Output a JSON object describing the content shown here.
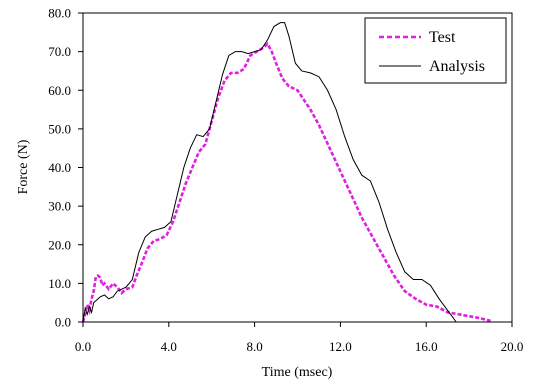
{
  "chart_data": {
    "type": "line",
    "xlabel": "Time (msec)",
    "ylabel": "Force (N)",
    "xlim": [
      0,
      20
    ],
    "ylim": [
      0,
      80
    ],
    "x_ticks": [
      0,
      4,
      8,
      12,
      16,
      20
    ],
    "y_ticks": [
      0,
      10,
      20,
      30,
      40,
      50,
      60,
      70,
      80
    ],
    "x_tick_labels": [
      "0.0",
      "4.0",
      "8.0",
      "12.0",
      "16.0",
      "20.0"
    ],
    "y_tick_labels": [
      "0.0",
      "10.0",
      "20.0",
      "30.0",
      "40.0",
      "50.0",
      "60.0",
      "70.0",
      "80.0"
    ],
    "grid": false,
    "legend": "top-right",
    "series": [
      {
        "name": "Test",
        "style": "dashed",
        "color": "#e020e0",
        "points": [
          [
            0.0,
            0.0
          ],
          [
            0.1,
            2.0
          ],
          [
            0.2,
            4.5
          ],
          [
            0.3,
            3.0
          ],
          [
            0.4,
            6.0
          ],
          [
            0.5,
            8.0
          ],
          [
            0.6,
            11.8
          ],
          [
            0.7,
            12.0
          ],
          [
            0.8,
            11.5
          ],
          [
            0.9,
            9.5
          ],
          [
            1.0,
            10.0
          ],
          [
            1.2,
            8.5
          ],
          [
            1.4,
            10.0
          ],
          [
            1.6,
            9.0
          ],
          [
            1.8,
            7.5
          ],
          [
            2.0,
            8.5
          ],
          [
            2.3,
            9.0
          ],
          [
            2.5,
            12.0
          ],
          [
            2.8,
            16.0
          ],
          [
            3.0,
            19.0
          ],
          [
            3.3,
            21.0
          ],
          [
            3.6,
            21.5
          ],
          [
            3.9,
            22.5
          ],
          [
            4.2,
            26.0
          ],
          [
            4.5,
            31.0
          ],
          [
            4.8,
            36.0
          ],
          [
            5.1,
            40.0
          ],
          [
            5.4,
            44.0
          ],
          [
            5.7,
            46.0
          ],
          [
            6.0,
            52.0
          ],
          [
            6.3,
            58.0
          ],
          [
            6.6,
            62.5
          ],
          [
            6.9,
            64.5
          ],
          [
            7.2,
            64.5
          ],
          [
            7.5,
            65.5
          ],
          [
            7.8,
            69.0
          ],
          [
            8.1,
            70.0
          ],
          [
            8.4,
            71.0
          ],
          [
            8.6,
            72.0
          ],
          [
            8.8,
            70.0
          ],
          [
            9.0,
            67.0
          ],
          [
            9.3,
            63.0
          ],
          [
            9.6,
            61.0
          ],
          [
            10.0,
            60.0
          ],
          [
            10.3,
            57.5
          ],
          [
            10.6,
            55.0
          ],
          [
            11.0,
            51.0
          ],
          [
            11.5,
            45.0
          ],
          [
            12.0,
            39.0
          ],
          [
            12.5,
            33.0
          ],
          [
            13.0,
            27.0
          ],
          [
            13.5,
            22.0
          ],
          [
            14.0,
            17.0
          ],
          [
            14.5,
            12.0
          ],
          [
            15.0,
            8.0
          ],
          [
            15.5,
            6.0
          ],
          [
            16.0,
            4.5
          ],
          [
            16.5,
            4.0
          ],
          [
            17.0,
            2.5
          ],
          [
            17.5,
            2.0
          ],
          [
            18.0,
            1.5
          ],
          [
            18.5,
            1.0
          ],
          [
            19.0,
            0.3
          ]
        ]
      },
      {
        "name": "Analysis",
        "style": "solid",
        "color": "#000000",
        "points": [
          [
            0.0,
            0.0
          ],
          [
            0.1,
            3.5
          ],
          [
            0.2,
            2.0
          ],
          [
            0.3,
            4.0
          ],
          [
            0.4,
            2.5
          ],
          [
            0.5,
            5.0
          ],
          [
            0.6,
            5.5
          ],
          [
            0.8,
            6.5
          ],
          [
            1.0,
            7.0
          ],
          [
            1.2,
            6.0
          ],
          [
            1.4,
            6.5
          ],
          [
            1.6,
            8.0
          ],
          [
            1.8,
            8.5
          ],
          [
            2.0,
            9.0
          ],
          [
            2.3,
            11.0
          ],
          [
            2.6,
            18.0
          ],
          [
            2.9,
            22.0
          ],
          [
            3.2,
            23.5
          ],
          [
            3.5,
            24.0
          ],
          [
            3.8,
            24.5
          ],
          [
            4.1,
            26.0
          ],
          [
            4.4,
            33.0
          ],
          [
            4.7,
            40.0
          ],
          [
            5.0,
            45.0
          ],
          [
            5.3,
            48.5
          ],
          [
            5.6,
            48.0
          ],
          [
            5.9,
            50.0
          ],
          [
            6.2,
            57.0
          ],
          [
            6.5,
            64.0
          ],
          [
            6.8,
            69.0
          ],
          [
            7.1,
            70.0
          ],
          [
            7.4,
            70.0
          ],
          [
            7.7,
            69.5
          ],
          [
            8.0,
            70.0
          ],
          [
            8.3,
            70.5
          ],
          [
            8.6,
            73.0
          ],
          [
            8.9,
            76.5
          ],
          [
            9.2,
            77.5
          ],
          [
            9.4,
            77.5
          ],
          [
            9.6,
            74.0
          ],
          [
            9.9,
            67.0
          ],
          [
            10.2,
            65.0
          ],
          [
            10.6,
            64.5
          ],
          [
            11.0,
            63.5
          ],
          [
            11.4,
            60.0
          ],
          [
            11.8,
            55.0
          ],
          [
            12.2,
            48.0
          ],
          [
            12.6,
            42.0
          ],
          [
            13.0,
            38.0
          ],
          [
            13.4,
            36.5
          ],
          [
            13.8,
            31.0
          ],
          [
            14.2,
            24.0
          ],
          [
            14.6,
            18.0
          ],
          [
            15.0,
            13.0
          ],
          [
            15.4,
            11.0
          ],
          [
            15.8,
            11.0
          ],
          [
            16.2,
            9.5
          ],
          [
            16.6,
            6.0
          ],
          [
            17.0,
            3.0
          ],
          [
            17.4,
            0.0
          ]
        ]
      }
    ]
  }
}
